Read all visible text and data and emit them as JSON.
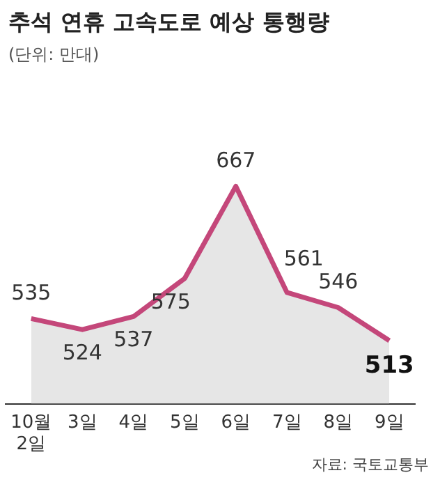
{
  "chart_data": {
    "type": "area",
    "title": "추석 연휴 고속도로 예상 통행량",
    "subtitle": "(단위: 만대)",
    "categories": [
      "10월 2일",
      "3일",
      "4일",
      "5일",
      "6일",
      "7일",
      "8일",
      "9일"
    ],
    "values": [
      535,
      524,
      537,
      575,
      667,
      561,
      546,
      513
    ],
    "color": "#c4477a",
    "data_labels": true,
    "grid": false,
    "legend": false,
    "annotations": [
      "자료: 국토교통부"
    ]
  }
}
